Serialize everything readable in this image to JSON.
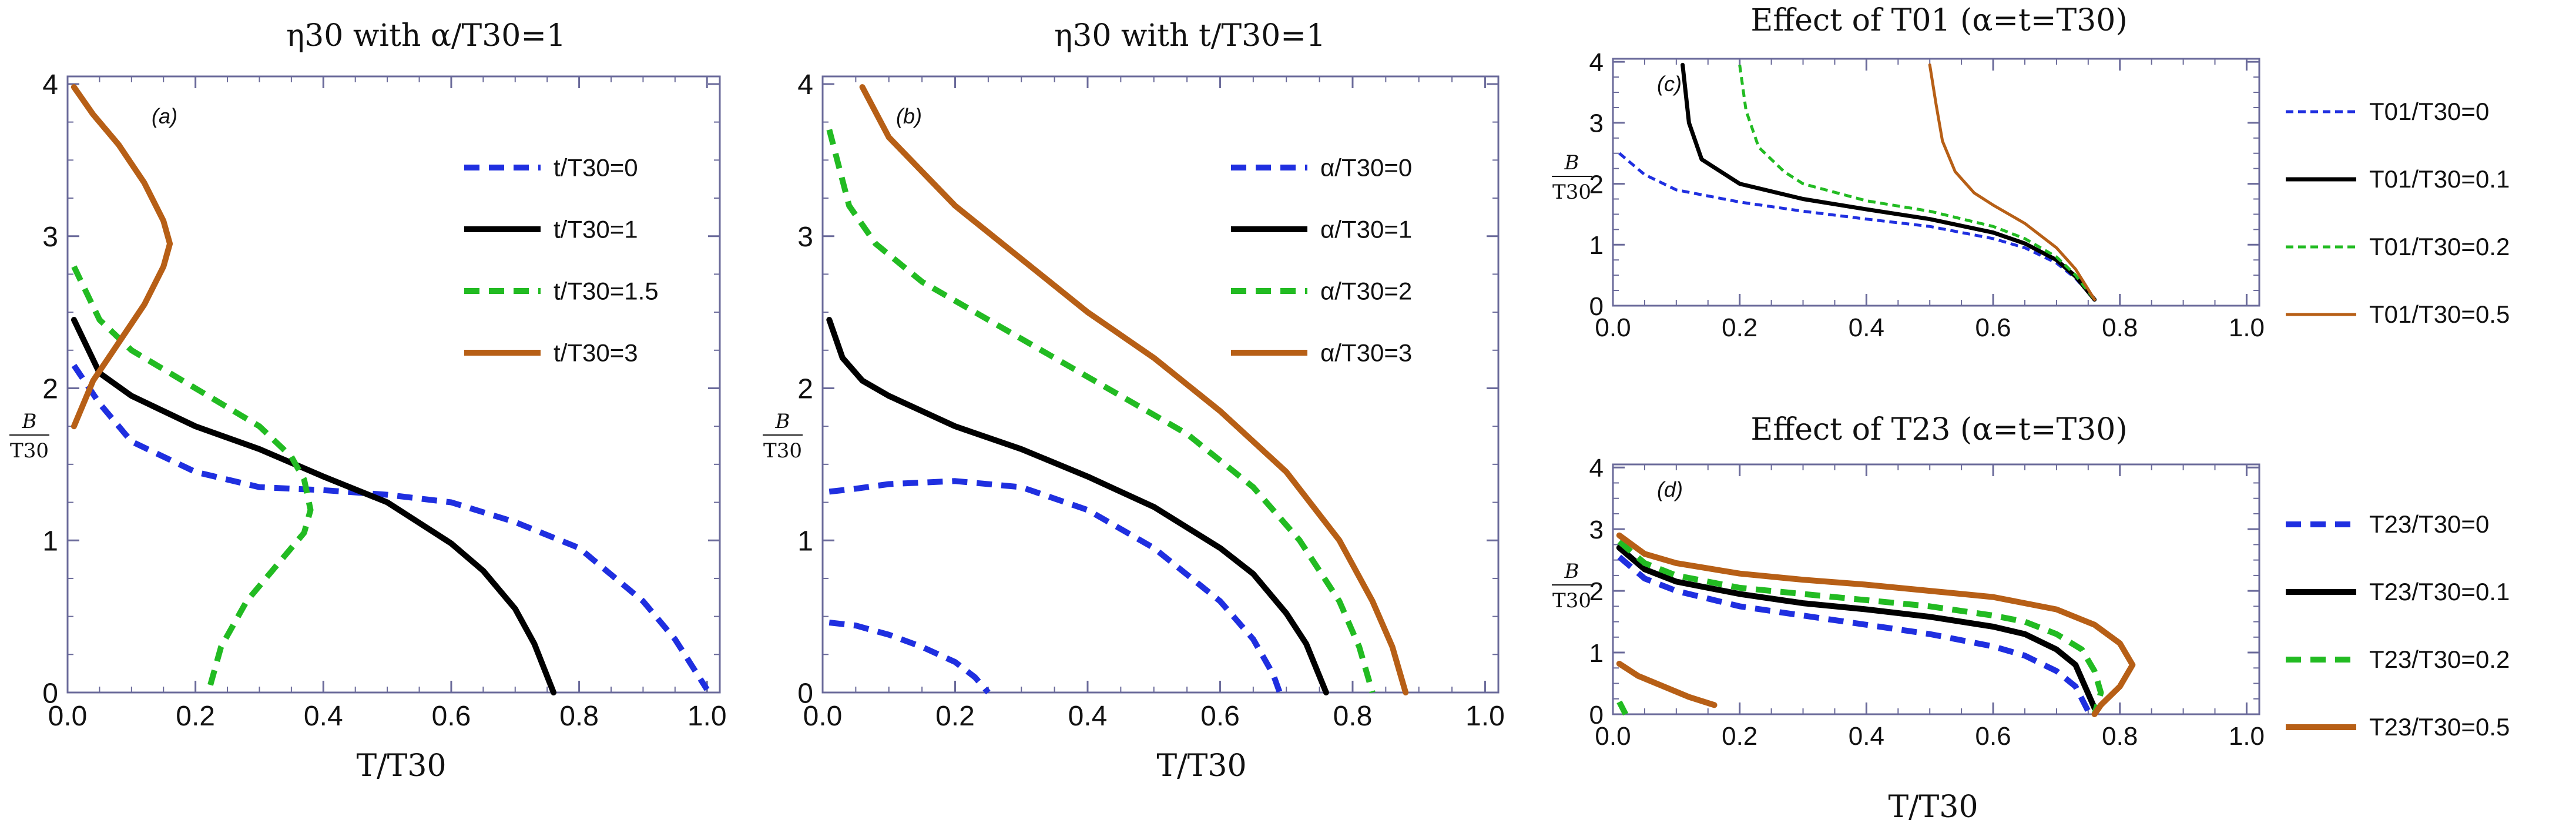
{
  "chart_data": [
    {
      "id": "a",
      "type": "line",
      "title": "η30 with α/T30=1",
      "panel_label": "(a)",
      "xlabel": "T/T30",
      "ylabel_num": "B",
      "ylabel_den": "T30",
      "xlim": [
        0,
        1.02
      ],
      "ylim": [
        0,
        4.05
      ],
      "xticks": [
        "0.0",
        "0.2",
        "0.4",
        "0.6",
        "0.8",
        "1.0"
      ],
      "yticks": [
        "0",
        "1",
        "2",
        "3",
        "4"
      ],
      "legend": "right",
      "series": [
        {
          "name": "t/T30=0",
          "color": "#1f2fe0",
          "dash": "dashed",
          "width": 10,
          "x": [
            0.01,
            0.05,
            0.1,
            0.2,
            0.3,
            0.4,
            0.5,
            0.6,
            0.7,
            0.8,
            0.9,
            0.95,
            1.0
          ],
          "y": [
            2.15,
            1.9,
            1.65,
            1.45,
            1.35,
            1.33,
            1.3,
            1.25,
            1.12,
            0.95,
            0.6,
            0.35,
            0.02
          ]
        },
        {
          "name": "t/T30=1",
          "color": "#000000",
          "dash": "solid",
          "width": 10,
          "x": [
            0.01,
            0.05,
            0.1,
            0.2,
            0.3,
            0.4,
            0.5,
            0.6,
            0.65,
            0.7,
            0.73,
            0.76
          ],
          "y": [
            2.45,
            2.1,
            1.95,
            1.75,
            1.6,
            1.42,
            1.25,
            0.98,
            0.8,
            0.55,
            0.32,
            0.0
          ]
        },
        {
          "name": "t/T30=1.5",
          "color": "#22bb22",
          "dash": "dashed",
          "width": 10,
          "x": [
            0.01,
            0.05,
            0.1,
            0.2,
            0.3,
            0.35,
            0.37,
            0.38,
            0.37,
            0.33,
            0.28,
            0.24,
            0.22
          ],
          "y": [
            2.8,
            2.45,
            2.25,
            2.0,
            1.75,
            1.55,
            1.4,
            1.2,
            1.05,
            0.85,
            0.6,
            0.3,
            0.0
          ]
        },
        {
          "name": "t/T30=3",
          "color": "#b75f16",
          "dash": "solid",
          "width": 10,
          "x": [
            0.01,
            0.04,
            0.08,
            0.12,
            0.15,
            0.16,
            0.15,
            0.12,
            0.08,
            0.04,
            0.01
          ],
          "y": [
            1.75,
            2.05,
            2.3,
            2.55,
            2.8,
            2.95,
            3.1,
            3.35,
            3.6,
            3.8,
            3.98
          ]
        }
      ]
    },
    {
      "id": "b",
      "type": "line",
      "title": "η30 with t/T30=1",
      "panel_label": "(b)",
      "xlabel": "T/T30",
      "ylabel_num": "B",
      "ylabel_den": "T30",
      "xlim": [
        0,
        1.02
      ],
      "ylim": [
        0,
        4.05
      ],
      "xticks": [
        "0.0",
        "0.2",
        "0.4",
        "0.6",
        "0.8",
        "1.0"
      ],
      "yticks": [
        "0",
        "1",
        "2",
        "3",
        "4"
      ],
      "legend": "right",
      "series": [
        {
          "name": "α/T30=0",
          "color": "#1f2fe0",
          "dash": "dashed",
          "width": 10,
          "x": [
            0.01,
            0.05,
            0.1,
            0.2,
            0.3,
            0.4,
            0.5,
            0.6,
            0.65,
            0.68,
            0.69
          ],
          "y": [
            1.32,
            1.34,
            1.37,
            1.39,
            1.35,
            1.2,
            0.95,
            0.6,
            0.35,
            0.12,
            0.0
          ]
        },
        {
          "name": "α/T30=0 (lower)",
          "color": "#1f2fe0",
          "dash": "dashed",
          "width": 10,
          "nolegend": true,
          "x": [
            0.01,
            0.05,
            0.1,
            0.15,
            0.2,
            0.23,
            0.25
          ],
          "y": [
            0.46,
            0.44,
            0.38,
            0.3,
            0.2,
            0.1,
            0.0
          ]
        },
        {
          "name": "α/T30=1",
          "color": "#000000",
          "dash": "solid",
          "width": 10,
          "x": [
            0.01,
            0.03,
            0.06,
            0.1,
            0.2,
            0.3,
            0.4,
            0.5,
            0.6,
            0.65,
            0.7,
            0.73,
            0.76
          ],
          "y": [
            2.45,
            2.2,
            2.05,
            1.95,
            1.75,
            1.6,
            1.42,
            1.22,
            0.95,
            0.78,
            0.52,
            0.32,
            0.0
          ]
        },
        {
          "name": "α/T30=2",
          "color": "#22bb22",
          "dash": "dashed",
          "width": 10,
          "x": [
            0.01,
            0.04,
            0.08,
            0.15,
            0.25,
            0.35,
            0.45,
            0.55,
            0.65,
            0.72,
            0.78,
            0.81,
            0.83
          ],
          "y": [
            3.7,
            3.2,
            2.95,
            2.7,
            2.45,
            2.2,
            1.95,
            1.7,
            1.35,
            1.0,
            0.6,
            0.3,
            0.0
          ]
        },
        {
          "name": "α/T30=3",
          "color": "#b75f16",
          "dash": "solid",
          "width": 10,
          "x": [
            0.06,
            0.1,
            0.2,
            0.3,
            0.4,
            0.5,
            0.6,
            0.7,
            0.78,
            0.83,
            0.86,
            0.88
          ],
          "y": [
            3.98,
            3.65,
            3.2,
            2.85,
            2.5,
            2.2,
            1.85,
            1.45,
            1.0,
            0.6,
            0.3,
            0.0
          ]
        }
      ]
    },
    {
      "id": "c",
      "type": "line",
      "title": "Effect of T01 (α=t=T30)",
      "panel_label": "(c)",
      "xlabel": "",
      "ylabel_num": "B",
      "ylabel_den": "T30",
      "xlim": [
        0,
        1.02
      ],
      "ylim": [
        0,
        4.05
      ],
      "xticks": [
        "0.0",
        "0.2",
        "0.4",
        "0.6",
        "0.8",
        "1.0"
      ],
      "yticks": [
        "0",
        "1",
        "2",
        "3",
        "4"
      ],
      "legend": "right",
      "series": [
        {
          "name": "T01/T30=0",
          "color": "#1f2fe0",
          "dash": "dashed",
          "width": 5,
          "x": [
            0.01,
            0.05,
            0.1,
            0.2,
            0.3,
            0.4,
            0.5,
            0.6,
            0.65,
            0.7,
            0.73,
            0.76
          ],
          "y": [
            2.5,
            2.15,
            1.9,
            1.7,
            1.55,
            1.42,
            1.3,
            1.1,
            0.95,
            0.7,
            0.45,
            0.1
          ]
        },
        {
          "name": "T01/T30=0.1",
          "color": "#000000",
          "dash": "solid",
          "width": 7,
          "x": [
            0.11,
            0.12,
            0.14,
            0.2,
            0.3,
            0.4,
            0.5,
            0.6,
            0.65,
            0.7,
            0.73,
            0.76
          ],
          "y": [
            3.95,
            3.0,
            2.4,
            2.0,
            1.75,
            1.58,
            1.42,
            1.2,
            1.02,
            0.75,
            0.48,
            0.1
          ]
        },
        {
          "name": "T01/T30=0.2",
          "color": "#22bb22",
          "dash": "dashed",
          "width": 5,
          "x": [
            0.2,
            0.21,
            0.23,
            0.27,
            0.3,
            0.4,
            0.5,
            0.6,
            0.65,
            0.7,
            0.73,
            0.76
          ],
          "y": [
            3.95,
            3.2,
            2.6,
            2.2,
            2.0,
            1.72,
            1.55,
            1.3,
            1.1,
            0.8,
            0.5,
            0.1
          ]
        },
        {
          "name": "T01/T30=0.5",
          "color": "#b75f16",
          "dash": "solid",
          "width": 5,
          "x": [
            0.5,
            0.51,
            0.52,
            0.54,
            0.57,
            0.6,
            0.65,
            0.7,
            0.73,
            0.76
          ],
          "y": [
            3.95,
            3.3,
            2.7,
            2.2,
            1.85,
            1.65,
            1.35,
            0.95,
            0.6,
            0.1
          ]
        }
      ]
    },
    {
      "id": "d",
      "type": "line",
      "title": "Effect of T23 (α=t=T30)",
      "panel_label": "(d)",
      "xlabel": "T/T30",
      "ylabel_num": "B",
      "ylabel_den": "T30",
      "xlim": [
        0,
        1.02
      ],
      "ylim": [
        0,
        4.05
      ],
      "xticks": [
        "0.0",
        "0.2",
        "0.4",
        "0.6",
        "0.8",
        "1.0"
      ],
      "yticks": [
        "0",
        "1",
        "2",
        "3",
        "4"
      ],
      "legend": "right",
      "series": [
        {
          "name": "T23/T30=0",
          "color": "#1f2fe0",
          "dash": "dashed",
          "width": 10,
          "x": [
            0.01,
            0.05,
            0.1,
            0.2,
            0.3,
            0.4,
            0.5,
            0.6,
            0.65,
            0.7,
            0.73,
            0.75
          ],
          "y": [
            2.55,
            2.2,
            2.0,
            1.75,
            1.6,
            1.45,
            1.3,
            1.1,
            0.95,
            0.7,
            0.45,
            0.05
          ]
        },
        {
          "name": "T23/T30=0.1",
          "color": "#000000",
          "dash": "solid",
          "width": 10,
          "x": [
            0.01,
            0.05,
            0.1,
            0.2,
            0.3,
            0.4,
            0.5,
            0.6,
            0.65,
            0.7,
            0.73,
            0.76
          ],
          "y": [
            2.7,
            2.35,
            2.15,
            1.95,
            1.8,
            1.7,
            1.58,
            1.42,
            1.3,
            1.05,
            0.8,
            0.1
          ]
        },
        {
          "name": "T23/T30=0.2",
          "color": "#22bb22",
          "dash": "dashed",
          "width": 10,
          "x": [
            0.01,
            0.05,
            0.1,
            0.2,
            0.3,
            0.4,
            0.5,
            0.6,
            0.65,
            0.7,
            0.74,
            0.76,
            0.77,
            0.76
          ],
          "y": [
            2.8,
            2.45,
            2.25,
            2.05,
            1.95,
            1.85,
            1.75,
            1.6,
            1.5,
            1.3,
            1.05,
            0.7,
            0.35,
            0.0
          ]
        },
        {
          "name": "T23/T30=0.2 (lower)",
          "color": "#22bb22",
          "dash": "dashed",
          "width": 10,
          "nolegend": true,
          "x": [
            0.01,
            0.015,
            0.02
          ],
          "y": [
            0.2,
            0.1,
            0.0
          ]
        },
        {
          "name": "T23/T30=0.5",
          "color": "#b75f16",
          "dash": "solid",
          "width": 10,
          "x": [
            0.01,
            0.05,
            0.1,
            0.2,
            0.3,
            0.4,
            0.5,
            0.6,
            0.7,
            0.76,
            0.8,
            0.82,
            0.8,
            0.77,
            0.76
          ],
          "y": [
            2.9,
            2.6,
            2.45,
            2.28,
            2.18,
            2.1,
            2.0,
            1.9,
            1.7,
            1.45,
            1.15,
            0.8,
            0.45,
            0.15,
            0.0
          ]
        },
        {
          "name": "T23/T30=0.5 (lower)",
          "color": "#b75f16",
          "dash": "solid",
          "width": 10,
          "nolegend": true,
          "x": [
            0.01,
            0.04,
            0.08,
            0.12,
            0.16
          ],
          "y": [
            0.82,
            0.62,
            0.45,
            0.28,
            0.15
          ]
        }
      ]
    }
  ]
}
